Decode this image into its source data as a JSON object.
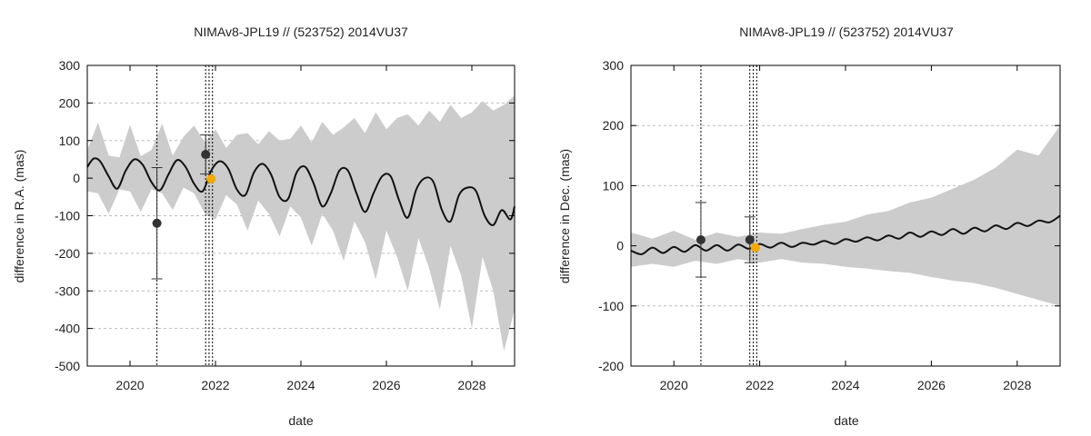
{
  "chart_data": [
    {
      "type": "line",
      "title": "NIMAv8-JPL19 // (523752) 2014VU37",
      "xlabel": "date",
      "ylabel": "difference in R.A. (mas)",
      "xlim": [
        2019.0,
        2029.0
      ],
      "ylim": [
        -500,
        300
      ],
      "xticks": [
        2020,
        2022,
        2024,
        2026,
        2028
      ],
      "xtick_labels": [
        "2020",
        "2022",
        "2024",
        "2026",
        "2028"
      ],
      "yticks": [
        -500,
        -400,
        -300,
        -200,
        -100,
        0,
        100,
        200,
        300
      ],
      "ytick_labels": [
        "-500",
        "-400",
        "-300",
        "-200",
        "-100",
        "0",
        "100",
        "200",
        "300"
      ],
      "grid": "horizontal-dashed",
      "vertical_lines": [
        2020.63,
        2021.77,
        2021.85,
        2021.93
      ],
      "band": {
        "x": [
          2019.0,
          2019.25,
          2019.5,
          2019.75,
          2020.0,
          2020.25,
          2020.5,
          2020.75,
          2021.0,
          2021.25,
          2021.5,
          2021.75,
          2022.0,
          2022.25,
          2022.5,
          2022.75,
          2023.0,
          2023.25,
          2023.5,
          2023.75,
          2024.0,
          2024.25,
          2024.5,
          2024.75,
          2025.0,
          2025.25,
          2025.5,
          2025.75,
          2026.0,
          2026.25,
          2026.5,
          2026.75,
          2027.0,
          2027.25,
          2027.5,
          2027.75,
          2028.0,
          2028.25,
          2028.5,
          2028.75,
          2029.0
        ],
        "upper": [
          75,
          148,
          60,
          55,
          142,
          58,
          75,
          145,
          60,
          110,
          140,
          95,
          130,
          80,
          115,
          120,
          90,
          125,
          100,
          105,
          140,
          95,
          150,
          115,
          135,
          160,
          120,
          175,
          130,
          160,
          170,
          140,
          180,
          150,
          195,
          160,
          175,
          205,
          180,
          195,
          220
        ],
        "lower": [
          -35,
          -40,
          -95,
          -30,
          -35,
          -90,
          -30,
          -40,
          -85,
          -25,
          -40,
          -95,
          -110,
          -45,
          -70,
          -140,
          -60,
          -95,
          -155,
          -75,
          -105,
          -180,
          -95,
          -140,
          -220,
          -115,
          -170,
          -270,
          -140,
          -210,
          -300,
          -160,
          -240,
          -350,
          -180,
          -260,
          -400,
          -210,
          -300,
          -460,
          -350
        ]
      },
      "series": [
        {
          "x": [
            2019.0,
            2019.15,
            2019.3,
            2019.5,
            2019.7,
            2019.9,
            2020.1,
            2020.3,
            2020.5,
            2020.7,
            2020.9,
            2021.1,
            2021.3,
            2021.5,
            2021.7,
            2021.9,
            2022.1,
            2022.3,
            2022.5,
            2022.7,
            2022.9,
            2023.1,
            2023.3,
            2023.5,
            2023.7,
            2023.9,
            2024.1,
            2024.3,
            2024.5,
            2024.7,
            2024.9,
            2025.1,
            2025.3,
            2025.5,
            2025.7,
            2025.9,
            2026.1,
            2026.3,
            2026.5,
            2026.7,
            2026.9,
            2027.1,
            2027.3,
            2027.5,
            2027.7,
            2027.9,
            2028.1,
            2028.3,
            2028.5,
            2028.7,
            2028.9,
            2029.0
          ],
          "values": [
            30,
            52,
            45,
            5,
            -28,
            20,
            50,
            35,
            -10,
            -32,
            10,
            48,
            30,
            -15,
            -35,
            20,
            45,
            25,
            -30,
            -45,
            15,
            38,
            10,
            -50,
            -55,
            15,
            30,
            -15,
            -75,
            -40,
            20,
            20,
            -40,
            -90,
            -40,
            5,
            5,
            -60,
            -105,
            -30,
            0,
            -10,
            -85,
            -115,
            -45,
            -25,
            -35,
            -100,
            -125,
            -85,
            -110,
            -75
          ]
        }
      ],
      "points": [
        {
          "x": 2020.63,
          "y": -120,
          "err": 148,
          "color": "#333333"
        },
        {
          "x": 2021.77,
          "y": 63,
          "err": 52,
          "color": "#333333"
        },
        {
          "x": 2021.9,
          "y": -2,
          "err": 0,
          "color": "#f5a800"
        }
      ]
    },
    {
      "type": "line",
      "title": "NIMAv8-JPL19 // (523752) 2014VU37",
      "xlabel": "date",
      "ylabel": "difference in Dec. (mas)",
      "xlim": [
        2019.0,
        2029.0
      ],
      "ylim": [
        -200,
        300
      ],
      "xticks": [
        2020,
        2022,
        2024,
        2026,
        2028
      ],
      "xtick_labels": [
        "2020",
        "2022",
        "2024",
        "2026",
        "2028"
      ],
      "yticks": [
        -200,
        -100,
        0,
        100,
        200,
        300
      ],
      "ytick_labels": [
        "-200",
        "-100",
        "0",
        "100",
        "200",
        "300"
      ],
      "grid": "horizontal-dashed",
      "vertical_lines": [
        2020.63,
        2021.77,
        2021.85,
        2021.93
      ],
      "band": {
        "x": [
          2019.0,
          2019.5,
          2020.0,
          2020.5,
          2021.0,
          2021.5,
          2022.0,
          2022.5,
          2023.0,
          2023.5,
          2024.0,
          2024.5,
          2025.0,
          2025.5,
          2026.0,
          2026.5,
          2027.0,
          2027.5,
          2028.0,
          2028.5,
          2029.0
        ],
        "upper": [
          22,
          12,
          25,
          10,
          22,
          15,
          22,
          20,
          28,
          35,
          40,
          52,
          58,
          72,
          80,
          95,
          110,
          130,
          160,
          150,
          200
        ],
        "lower": [
          -35,
          -30,
          -35,
          -25,
          -30,
          -22,
          -28,
          -22,
          -28,
          -30,
          -35,
          -38,
          -42,
          -45,
          -52,
          -58,
          -62,
          -70,
          -80,
          -90,
          -100
        ]
      },
      "series": [
        {
          "x": [
            2019.0,
            2019.25,
            2019.5,
            2019.75,
            2020.0,
            2020.25,
            2020.5,
            2020.75,
            2021.0,
            2021.25,
            2021.5,
            2021.75,
            2022.0,
            2022.25,
            2022.5,
            2022.75,
            2023.0,
            2023.25,
            2023.5,
            2023.75,
            2024.0,
            2024.25,
            2024.5,
            2024.75,
            2025.0,
            2025.25,
            2025.5,
            2025.75,
            2026.0,
            2026.25,
            2026.5,
            2026.75,
            2027.0,
            2027.25,
            2027.5,
            2027.75,
            2028.0,
            2028.25,
            2028.5,
            2028.75,
            2029.0
          ],
          "values": [
            -8,
            -14,
            -3,
            -12,
            -2,
            -10,
            1,
            -8,
            1,
            -8,
            2,
            -5,
            3,
            -3,
            5,
            -2,
            5,
            2,
            8,
            3,
            11,
            7,
            14,
            9,
            17,
            12,
            22,
            15,
            24,
            18,
            28,
            20,
            30,
            24,
            34,
            28,
            38,
            33,
            42,
            39,
            50
          ]
        }
      ],
      "points": [
        {
          "x": 2020.63,
          "y": 10,
          "err": 62,
          "color": "#333333"
        },
        {
          "x": 2021.77,
          "y": 10,
          "err": 38,
          "color": "#333333"
        },
        {
          "x": 2021.9,
          "y": -3,
          "err": 0,
          "color": "#f5a800"
        }
      ]
    }
  ]
}
